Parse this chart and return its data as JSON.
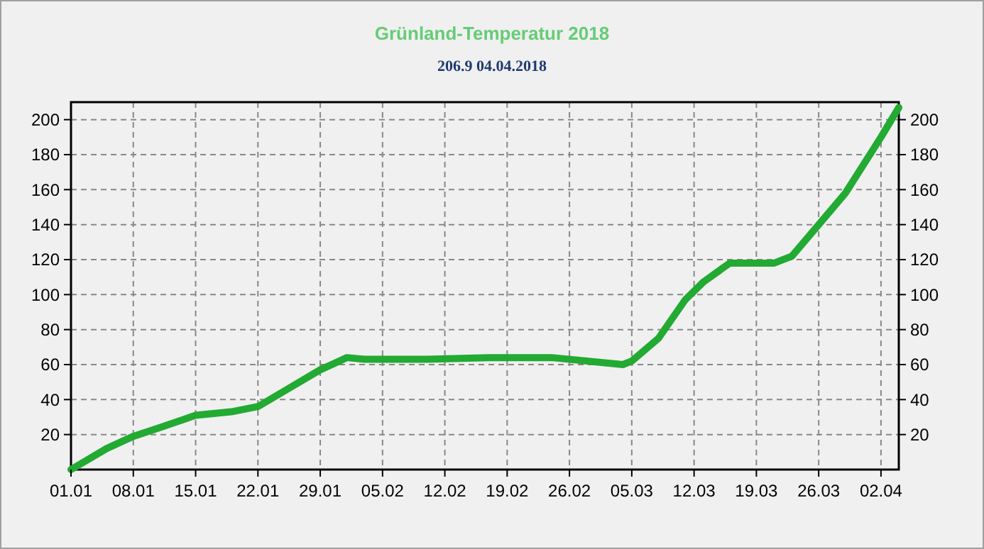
{
  "chart_data": {
    "type": "line",
    "title": "Grünland-Temperatur  2018",
    "subtitle": "206.9  04.04.2018",
    "x": [
      "2018-01-01",
      "2018-01-05",
      "2018-01-08",
      "2018-01-11",
      "2018-01-15",
      "2018-01-19",
      "2018-01-22",
      "2018-01-25",
      "2018-01-29",
      "2018-02-01",
      "2018-02-03",
      "2018-02-10",
      "2018-02-17",
      "2018-02-24",
      "2018-03-04",
      "2018-03-05",
      "2018-03-08",
      "2018-03-11",
      "2018-03-13",
      "2018-03-16",
      "2018-03-21",
      "2018-03-23",
      "2018-03-26",
      "2018-03-29",
      "2018-04-02",
      "2018-04-04"
    ],
    "series": [
      {
        "color": "#22aa33",
        "values": [
          0,
          12,
          19,
          24,
          31,
          33,
          36,
          45,
          57,
          64,
          63,
          63,
          64,
          64,
          60,
          62,
          75,
          97,
          107,
          118,
          118,
          122,
          140,
          158,
          190,
          206.9
        ]
      }
    ],
    "xlim": [
      "2018-01-01",
      "2018-04-04"
    ],
    "xticks": [
      {
        "value": "2018-01-01",
        "label": "01.01"
      },
      {
        "value": "2018-01-08",
        "label": "08.01"
      },
      {
        "value": "2018-01-15",
        "label": "15.01"
      },
      {
        "value": "2018-01-22",
        "label": "22.01"
      },
      {
        "value": "2018-01-29",
        "label": "29.01"
      },
      {
        "value": "2018-02-05",
        "label": "05.02"
      },
      {
        "value": "2018-02-12",
        "label": "12.02"
      },
      {
        "value": "2018-02-19",
        "label": "19.02"
      },
      {
        "value": "2018-02-26",
        "label": "26.02"
      },
      {
        "value": "2018-03-05",
        "label": "05.03"
      },
      {
        "value": "2018-03-12",
        "label": "12.03"
      },
      {
        "value": "2018-03-19",
        "label": "19.03"
      },
      {
        "value": "2018-03-26",
        "label": "26.03"
      },
      {
        "value": "2018-04-02",
        "label": "02.04"
      }
    ],
    "ylim": [
      0,
      210
    ],
    "yticks": [
      20,
      40,
      60,
      80,
      100,
      120,
      140,
      160,
      180,
      200
    ],
    "y2lim": [
      0,
      210
    ],
    "y2ticks": [
      20,
      40,
      60,
      80,
      100,
      120,
      140,
      160,
      180,
      200
    ],
    "grid": true,
    "line_style": "solid",
    "marker": "none"
  }
}
